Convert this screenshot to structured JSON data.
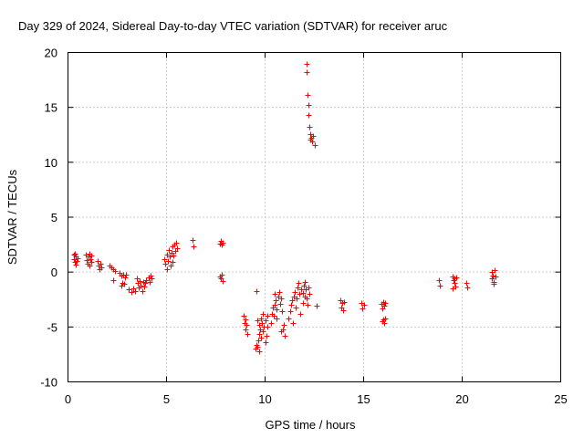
{
  "chart_data": {
    "type": "scatter",
    "title": "Day 329 of 2024, Sidereal Day-to-day VTEC variation (SDTVAR) for receiver aruc",
    "xlabel": "GPS time / hours",
    "ylabel": "SDTVAR / TECUs",
    "xlim": [
      0,
      25
    ],
    "ylim": [
      -10,
      20
    ],
    "xticks": [
      "0",
      "5",
      "10",
      "15",
      "20",
      "25"
    ],
    "yticks": [
      "-10",
      "-5",
      "0",
      "5",
      "10",
      "15",
      "20"
    ],
    "grid": true,
    "marker": "+",
    "marker_color": "#ff0000",
    "series": [
      {
        "name": "SDTVAR",
        "points": [
          [
            0.3,
            1.2
          ],
          [
            0.3,
            1.6
          ],
          [
            0.35,
            0.9
          ],
          [
            0.4,
            1.4
          ],
          [
            0.4,
            0.7
          ],
          [
            0.45,
            1.0
          ],
          [
            0.5,
            1.3
          ],
          [
            0.35,
            1.7
          ],
          [
            0.9,
            1.6
          ],
          [
            0.95,
            1.1
          ],
          [
            1.0,
            0.8
          ],
          [
            1.05,
            1.4
          ],
          [
            1.1,
            1.7
          ],
          [
            1.1,
            0.6
          ],
          [
            1.15,
            1.2
          ],
          [
            1.2,
            0.9
          ],
          [
            1.2,
            1.5
          ],
          [
            1.5,
            1.0
          ],
          [
            1.55,
            0.6
          ],
          [
            1.6,
            0.3
          ],
          [
            1.65,
            0.8
          ],
          [
            1.7,
            0.4
          ],
          [
            2.1,
            0.6
          ],
          [
            2.2,
            0.4
          ],
          [
            2.3,
            0.3
          ],
          [
            2.4,
            0.1
          ],
          [
            2.3,
            -0.7
          ],
          [
            2.6,
            -0.1
          ],
          [
            2.7,
            -0.3
          ],
          [
            2.75,
            -1.0
          ],
          [
            2.8,
            -0.2
          ],
          [
            2.85,
            -1.1
          ],
          [
            2.9,
            -0.5
          ],
          [
            2.95,
            -0.2
          ],
          [
            2.7,
            -1.2
          ],
          [
            3.1,
            -1.6
          ],
          [
            3.2,
            -1.8
          ],
          [
            3.3,
            -1.5
          ],
          [
            3.4,
            -1.7
          ],
          [
            3.5,
            -0.6
          ],
          [
            3.55,
            -1.0
          ],
          [
            3.6,
            -1.4
          ],
          [
            3.65,
            -0.8
          ],
          [
            3.7,
            -1.2
          ],
          [
            3.75,
            -1.7
          ],
          [
            3.8,
            -0.9
          ],
          [
            3.85,
            -1.3
          ],
          [
            3.9,
            -1.0
          ],
          [
            3.95,
            -0.7
          ],
          [
            4.1,
            -0.5
          ],
          [
            4.15,
            -0.9
          ],
          [
            4.2,
            -0.3
          ],
          [
            4.25,
            -0.6
          ],
          [
            4.9,
            1.2
          ],
          [
            4.95,
            0.8
          ],
          [
            5.0,
            1.6
          ],
          [
            5.05,
            1.0
          ],
          [
            5.1,
            2.0
          ],
          [
            5.15,
            1.4
          ],
          [
            5.2,
            0.6
          ],
          [
            5.25,
            1.8
          ],
          [
            5.3,
            2.3
          ],
          [
            5.35,
            1.5
          ],
          [
            5.4,
            2.5
          ],
          [
            5.45,
            1.9
          ],
          [
            5.5,
            2.7
          ],
          [
            5.55,
            2.2
          ],
          [
            5.0,
            0.3
          ],
          [
            5.3,
            0.9
          ],
          [
            6.3,
            2.9
          ],
          [
            6.35,
            2.3
          ],
          [
            7.7,
            2.6
          ],
          [
            7.75,
            2.8
          ],
          [
            7.8,
            2.5
          ],
          [
            7.85,
            2.7
          ],
          [
            7.7,
            -0.4
          ],
          [
            7.75,
            -0.6
          ],
          [
            7.8,
            -0.2
          ],
          [
            7.85,
            -0.8
          ],
          [
            8.9,
            -4.0
          ],
          [
            8.95,
            -4.6
          ],
          [
            9.0,
            -5.2
          ],
          [
            9.05,
            -4.8
          ],
          [
            9.1,
            -5.6
          ],
          [
            9.0,
            -4.3
          ],
          [
            9.55,
            -1.7
          ],
          [
            9.5,
            -7.0
          ],
          [
            9.55,
            -6.6
          ],
          [
            9.6,
            -6.8
          ],
          [
            9.65,
            -6.2
          ],
          [
            9.7,
            -5.6
          ],
          [
            9.7,
            -4.8
          ],
          [
            9.75,
            -5.2
          ],
          [
            9.8,
            -4.2
          ],
          [
            9.8,
            -6.0
          ],
          [
            9.85,
            -4.6
          ],
          [
            9.9,
            -5.4
          ],
          [
            9.9,
            -3.8
          ],
          [
            9.95,
            -5.0
          ],
          [
            10.0,
            -4.4
          ],
          [
            10.0,
            -6.4
          ],
          [
            10.05,
            -5.8
          ],
          [
            10.1,
            -4.0
          ],
          [
            10.1,
            -5.0
          ],
          [
            9.6,
            -4.4
          ],
          [
            9.7,
            -7.2
          ],
          [
            10.3,
            -4.6
          ],
          [
            10.35,
            -3.8
          ],
          [
            10.4,
            -3.2
          ],
          [
            10.45,
            -4.0
          ],
          [
            10.5,
            -3.0
          ],
          [
            10.55,
            -2.6
          ],
          [
            10.6,
            -3.4
          ],
          [
            10.65,
            -2.2
          ],
          [
            10.7,
            -1.8
          ],
          [
            10.75,
            -2.9
          ],
          [
            10.8,
            -2.4
          ],
          [
            10.85,
            -3.6
          ],
          [
            10.9,
            -5.2
          ],
          [
            10.95,
            -4.8
          ],
          [
            11.0,
            -5.8
          ],
          [
            10.6,
            -4.2
          ],
          [
            10.8,
            -5.4
          ],
          [
            10.5,
            -2.0
          ],
          [
            11.2,
            -4.2
          ],
          [
            11.25,
            -3.6
          ],
          [
            11.3,
            -3.0
          ],
          [
            11.35,
            -2.6
          ],
          [
            11.4,
            -4.6
          ],
          [
            11.45,
            -2.2
          ],
          [
            11.5,
            -1.8
          ],
          [
            11.55,
            -3.2
          ],
          [
            11.6,
            -2.4
          ],
          [
            11.65,
            -1.4
          ],
          [
            11.7,
            -1.0
          ],
          [
            11.75,
            -2.0
          ],
          [
            11.8,
            -3.8
          ],
          [
            11.85,
            -1.6
          ],
          [
            11.9,
            -2.8
          ],
          [
            11.95,
            -1.2
          ],
          [
            12.0,
            -2.2
          ],
          [
            12.05,
            -1.6
          ],
          [
            12.1,
            -2.4
          ],
          [
            12.15,
            -3.0
          ],
          [
            12.2,
            -1.4
          ],
          [
            12.25,
            -2.0
          ],
          [
            11.9,
            -1.9
          ],
          [
            12.0,
            -0.9
          ],
          [
            12.1,
            19.0
          ],
          [
            12.1,
            18.2
          ],
          [
            12.15,
            16.1
          ],
          [
            12.2,
            15.2
          ],
          [
            12.2,
            14.3
          ],
          [
            12.25,
            13.2
          ],
          [
            12.3,
            12.6
          ],
          [
            12.35,
            12.2
          ],
          [
            12.4,
            11.9
          ],
          [
            12.45,
            12.4
          ],
          [
            12.5,
            11.6
          ],
          [
            12.3,
            12.1
          ],
          [
            12.6,
            -3.1
          ],
          [
            13.8,
            -2.6
          ],
          [
            13.85,
            -3.2
          ],
          [
            13.9,
            -2.8
          ],
          [
            13.95,
            -3.5
          ],
          [
            14.0,
            -2.7
          ],
          [
            14.9,
            -2.8
          ],
          [
            14.95,
            -3.3
          ],
          [
            15.0,
            -3.0
          ],
          [
            15.9,
            -2.9
          ],
          [
            15.95,
            -3.3
          ],
          [
            16.0,
            -2.7
          ],
          [
            16.05,
            -3.1
          ],
          [
            16.1,
            -2.8
          ],
          [
            15.95,
            -4.5
          ],
          [
            16.0,
            -4.3
          ],
          [
            16.05,
            -4.6
          ],
          [
            16.1,
            -4.2
          ],
          [
            18.8,
            -0.7
          ],
          [
            18.85,
            -1.2
          ],
          [
            19.5,
            -0.4
          ],
          [
            19.55,
            -0.7
          ],
          [
            19.6,
            -1.0
          ],
          [
            19.65,
            -1.3
          ],
          [
            19.7,
            -0.5
          ],
          [
            19.5,
            -1.5
          ],
          [
            19.6,
            -0.6
          ],
          [
            20.2,
            -1.0
          ],
          [
            20.25,
            -1.4
          ],
          [
            21.5,
            -0.6
          ],
          [
            21.55,
            -0.3
          ],
          [
            21.6,
            -0.9
          ],
          [
            21.65,
            0.2
          ],
          [
            21.7,
            -0.4
          ],
          [
            21.6,
            -1.1
          ],
          [
            21.5,
            0.0
          ]
        ]
      }
    ]
  }
}
